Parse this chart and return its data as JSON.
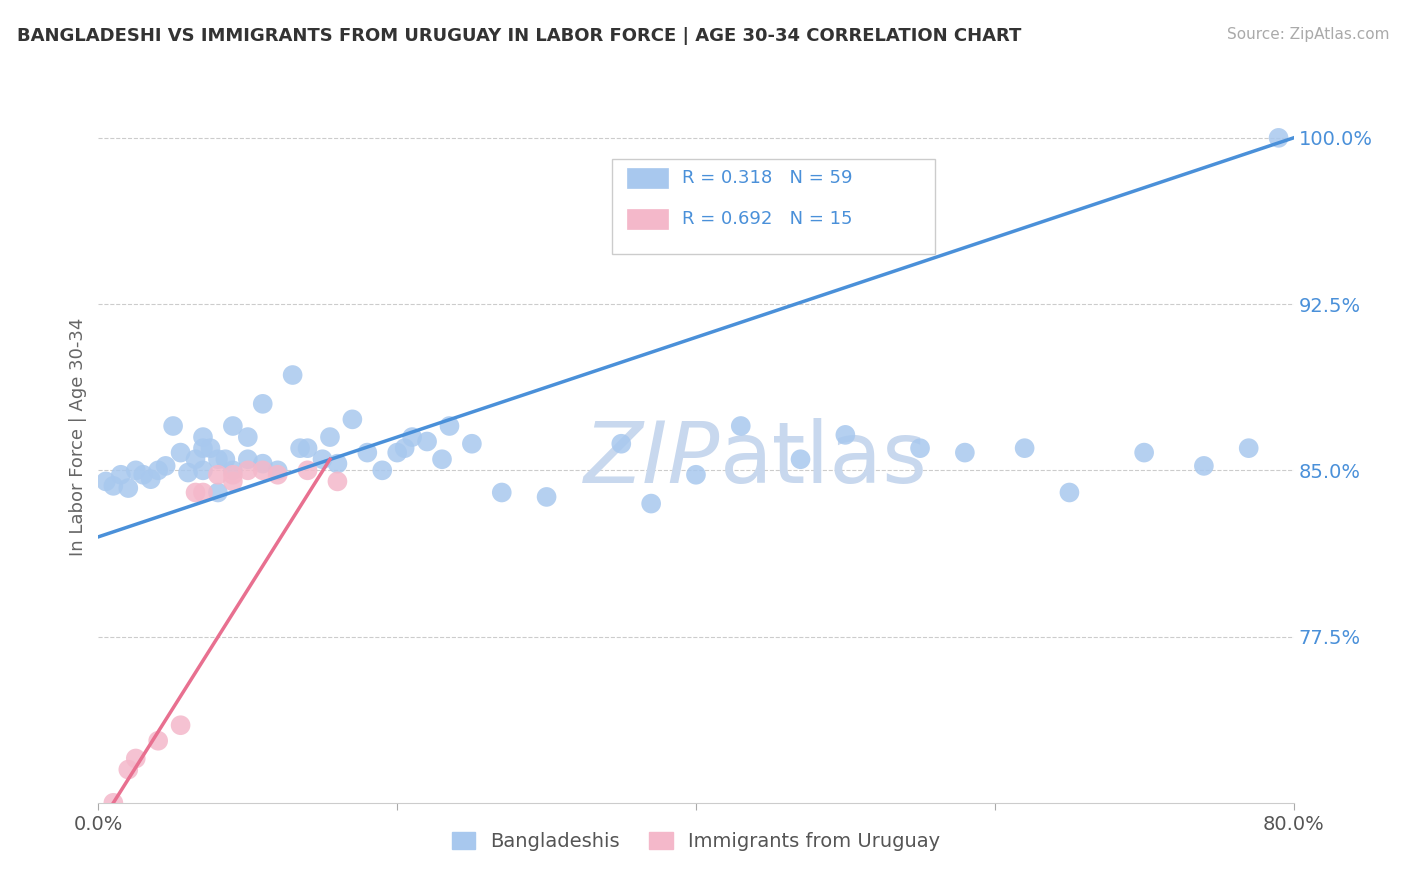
{
  "title": "BANGLADESHI VS IMMIGRANTS FROM URUGUAY IN LABOR FORCE | AGE 30-34 CORRELATION CHART",
  "source_text": "Source: ZipAtlas.com",
  "ylabel": "In Labor Force | Age 30-34",
  "xlim": [
    0.0,
    0.8
  ],
  "ylim": [
    0.7,
    1.03
  ],
  "xticks": [
    0.0,
    0.2,
    0.4,
    0.6,
    0.8
  ],
  "xticklabels": [
    "0.0%",
    "",
    "",
    "",
    "80.0%"
  ],
  "ytick_positions": [
    0.775,
    0.85,
    0.925,
    1.0
  ],
  "ytick_labels": [
    "77.5%",
    "85.0%",
    "92.5%",
    "100.0%"
  ],
  "r_blue": 0.318,
  "n_blue": 59,
  "r_pink": 0.692,
  "n_pink": 15,
  "blue_color": "#A8C8EE",
  "pink_color": "#F4B8CA",
  "blue_line_color": "#4A90D9",
  "pink_line_color": "#E87090",
  "tick_color": "#4A90D9",
  "watermark_color": "#C8D8EE",
  "blue_scatter_x": [
    0.005,
    0.01,
    0.015,
    0.02,
    0.025,
    0.03,
    0.035,
    0.04,
    0.045,
    0.05,
    0.055,
    0.06,
    0.065,
    0.07,
    0.07,
    0.07,
    0.075,
    0.08,
    0.08,
    0.085,
    0.09,
    0.09,
    0.1,
    0.1,
    0.11,
    0.11,
    0.12,
    0.13,
    0.135,
    0.14,
    0.15,
    0.155,
    0.16,
    0.17,
    0.18,
    0.19,
    0.2,
    0.205,
    0.21,
    0.22,
    0.23,
    0.235,
    0.25,
    0.27,
    0.3,
    0.35,
    0.37,
    0.4,
    0.43,
    0.47,
    0.5,
    0.55,
    0.58,
    0.62,
    0.65,
    0.7,
    0.74,
    0.77,
    0.79
  ],
  "blue_scatter_y": [
    0.845,
    0.843,
    0.848,
    0.842,
    0.85,
    0.848,
    0.846,
    0.85,
    0.852,
    0.87,
    0.858,
    0.849,
    0.855,
    0.85,
    0.86,
    0.865,
    0.86,
    0.84,
    0.855,
    0.855,
    0.85,
    0.87,
    0.855,
    0.865,
    0.853,
    0.88,
    0.85,
    0.893,
    0.86,
    0.86,
    0.855,
    0.865,
    0.853,
    0.873,
    0.858,
    0.85,
    0.858,
    0.86,
    0.865,
    0.863,
    0.855,
    0.87,
    0.862,
    0.84,
    0.838,
    0.862,
    0.835,
    0.848,
    0.87,
    0.855,
    0.866,
    0.86,
    0.858,
    0.86,
    0.84,
    0.858,
    0.852,
    0.86,
    1.0
  ],
  "pink_scatter_x": [
    0.01,
    0.02,
    0.025,
    0.04,
    0.055,
    0.065,
    0.07,
    0.08,
    0.09,
    0.09,
    0.1,
    0.11,
    0.12,
    0.14,
    0.16
  ],
  "pink_scatter_y": [
    0.7,
    0.715,
    0.72,
    0.728,
    0.735,
    0.84,
    0.84,
    0.848,
    0.845,
    0.848,
    0.85,
    0.85,
    0.848,
    0.85,
    0.845
  ],
  "blue_trend_x0": 0.0,
  "blue_trend_x1": 0.8,
  "blue_trend_y0": 0.82,
  "blue_trend_y1": 1.0,
  "pink_trend_x0": 0.01,
  "pink_trend_x1": 0.155,
  "pink_trend_y0": 0.7,
  "pink_trend_y1": 0.855,
  "grid_color": "#CCCCCC",
  "bg_color": "#FFFFFF"
}
